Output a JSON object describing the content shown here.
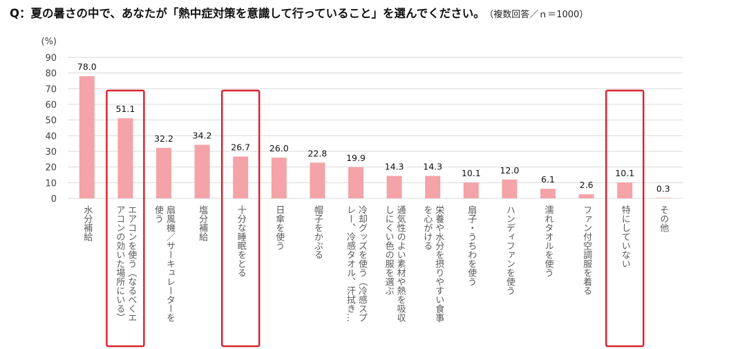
{
  "title": {
    "question": "Q：夏の暑さの中で、あなたが「熱中症対策を意識して行っていること」を選んでください。",
    "note": "（複数回答／ｎ＝1000）"
  },
  "chart_data": {
    "type": "bar",
    "ylabel": "(%)",
    "ylim": [
      0,
      90
    ],
    "yticks": [
      0,
      10,
      20,
      30,
      40,
      50,
      60,
      70,
      80,
      90
    ],
    "grid": true,
    "categories": [
      "水分補給",
      "エアコンを使う（なるべくエアコンの効いた場所にいる）",
      "扇風機／サーキュレーターを使う",
      "塩分補給",
      "十分な睡眠をとる",
      "日傘を使う",
      "帽子をかぶる",
      "冷却グッズを使う（冷感スプレー、冷感タオル、汗拭き…",
      "通気性のよい素材や熱を吸収しにくい色の服を選ぶ",
      "栄養や水分を摂りやすい食事を心がける",
      "扇子・うちわを使う",
      "ハンディファンを使う",
      "濡れタオルを使う",
      "ファン付空調服を着る",
      "特にしていない",
      "その他"
    ],
    "category_lines": [
      [
        "水分補給"
      ],
      [
        "エアコンを使う（なるべくエ",
        "アコンの効いた場所にいる）"
      ],
      [
        "扇風機／サーキュレーターを",
        "使う"
      ],
      [
        "塩分補給"
      ],
      [
        "十分な睡眠をとる"
      ],
      [
        "日傘を使う"
      ],
      [
        "帽子をかぶる"
      ],
      [
        "冷却グッズを使う（冷感スプ",
        "レー、冷感タオル、汗拭き…"
      ],
      [
        "通気性のよい素材や熱を吸収",
        "しにくい色の服を選ぶ"
      ],
      [
        "栄養や水分を摂りやすい食事",
        "を心がける"
      ],
      [
        "扇子・うちわを使う"
      ],
      [
        "ハンディファンを使う"
      ],
      [
        "濡れタオルを使う"
      ],
      [
        "ファン付空調服を着る"
      ],
      [
        "特にしていない"
      ],
      [
        "その他"
      ]
    ],
    "values": [
      78.0,
      51.1,
      32.2,
      34.2,
      26.7,
      26.0,
      22.8,
      19.9,
      14.3,
      14.3,
      10.1,
      12.0,
      6.1,
      2.6,
      10.1,
      0.3
    ],
    "highlighted": [
      "エアコンを使う（なるべくエアコンの効いた場所にいる）",
      "十分な睡眠をとる",
      "特にしていない"
    ],
    "colors": {
      "bar": "#f4a3a8",
      "grid": "#d9d9d9",
      "highlight": "#d9232e",
      "text": "#404040",
      "label": "#595959"
    }
  }
}
